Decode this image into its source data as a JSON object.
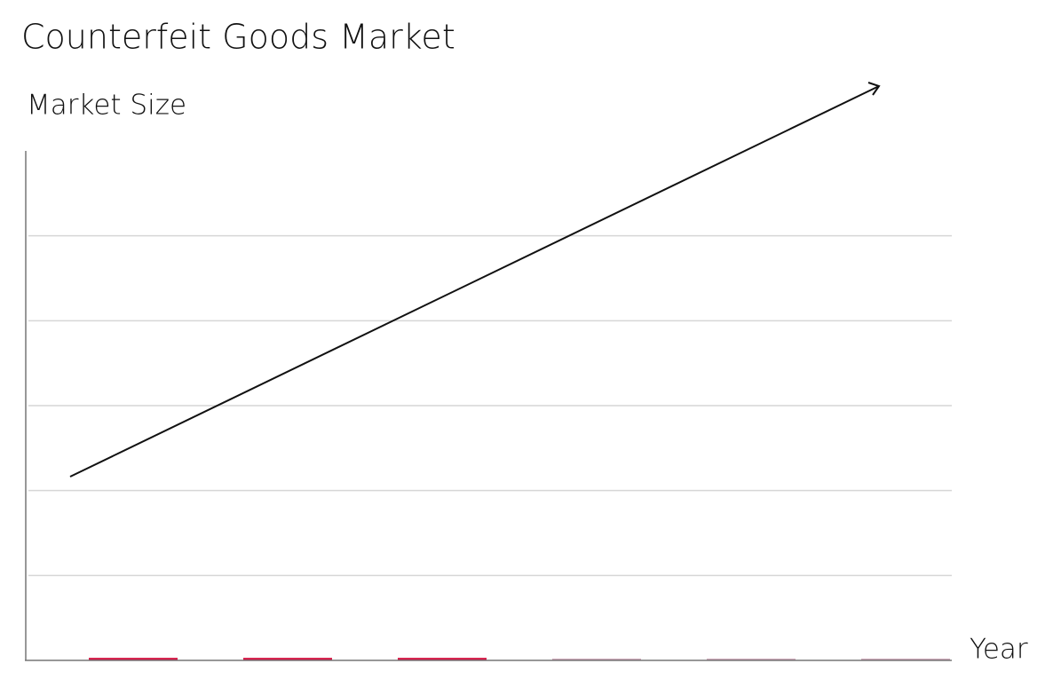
{
  "chart_data": {
    "type": "bar",
    "title": "Counterfeit Goods Market",
    "y_label": "Market Size",
    "x_label": "Year",
    "categories": [
      null,
      null,
      null,
      null,
      null,
      null
    ],
    "values": [
      0.03,
      0.03,
      0.03,
      0.02,
      0.02,
      0.02
    ],
    "colors": [
      "#d41543",
      "#d41543",
      "#d41543",
      "#c9a0b2",
      "#c9a0b2",
      "#c9a0b2"
    ],
    "ylim": [
      0,
      6
    ],
    "yticks": [
      1,
      2,
      3,
      4,
      5
    ],
    "grid": true
  }
}
